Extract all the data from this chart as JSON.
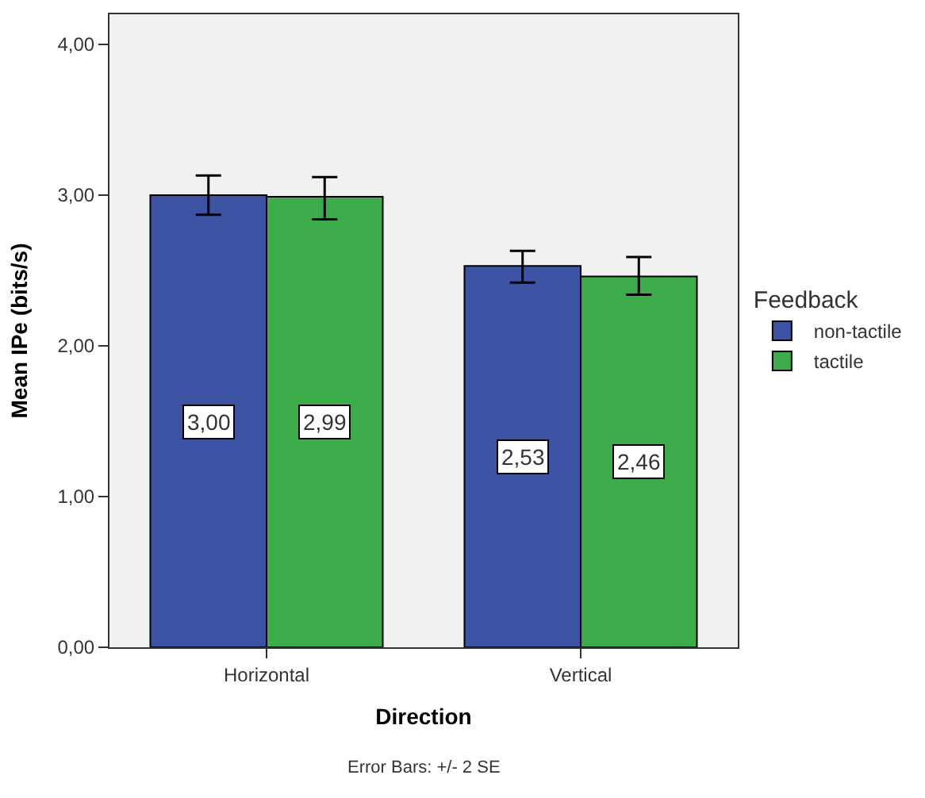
{
  "chart_data": {
    "type": "bar",
    "xlabel": "Direction",
    "ylabel": "Mean IPe (bits/s)",
    "legend_title": "Feedback",
    "legend": "right",
    "grid": false,
    "categories": [
      "Horizontal",
      "Vertical"
    ],
    "series": [
      {
        "name": "non-tactile",
        "color": "#3c53a4",
        "values": [
          3.0,
          2.53
        ],
        "value_labels": [
          "3,00",
          "2,53"
        ],
        "errors": [
          [
            2.87,
            3.13
          ],
          [
            2.42,
            2.63
          ]
        ]
      },
      {
        "name": "tactile",
        "color": "#3cab4a",
        "values": [
          2.99,
          2.46
        ],
        "value_labels": [
          "2,99",
          "2,46"
        ],
        "errors": [
          [
            2.84,
            3.12
          ],
          [
            2.34,
            2.59
          ]
        ]
      }
    ],
    "ylim": [
      0,
      4.2
    ],
    "yticks": [
      {
        "value": 0,
        "label": "0,00"
      },
      {
        "value": 1,
        "label": "1,00"
      },
      {
        "value": 2,
        "label": "2,00"
      },
      {
        "value": 3,
        "label": "3,00"
      },
      {
        "value": 4,
        "label": "4,00"
      }
    ],
    "annotations": [
      "Error Bars: +/- 2 SE"
    ]
  }
}
